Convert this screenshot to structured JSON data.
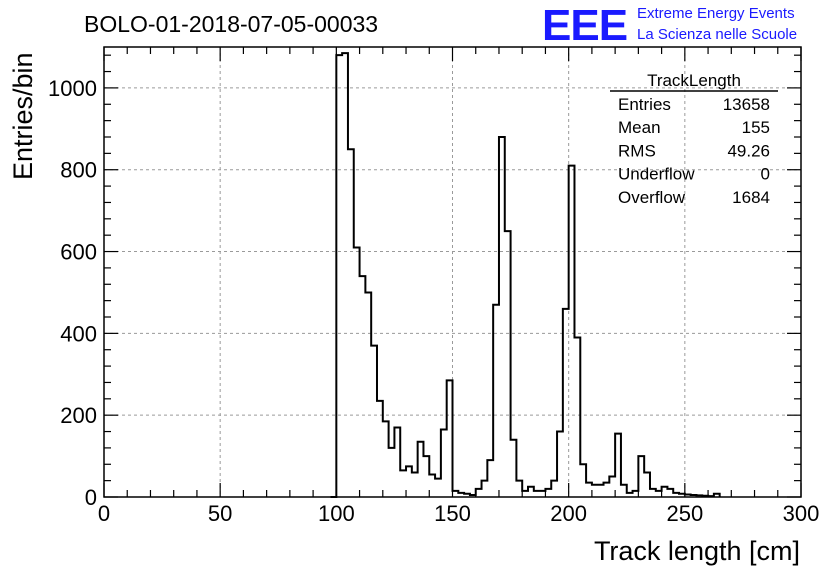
{
  "header": {
    "run_title": "BOLO-01-2018-07-05-00033",
    "logo_mark": "EEE",
    "logo_line1": "Extreme Energy Events",
    "logo_line2": "La Scienza nelle Scuole"
  },
  "stats_box": {
    "name": "TrackLength",
    "rows": [
      {
        "label": "Entries",
        "value": "13658"
      },
      {
        "label": "Mean",
        "value": "155"
      },
      {
        "label": "RMS",
        "value": "49.26"
      },
      {
        "label": "Underflow",
        "value": "0"
      },
      {
        "label": "Overflow",
        "value": "1684"
      }
    ]
  },
  "colors": {
    "line": "#000000",
    "grid": "#9a9a9a",
    "logo": "#1a1aff"
  },
  "chart_data": {
    "type": "histogram",
    "xlabel": "Track length [cm]",
    "ylabel": "Entries/bin",
    "xlim": [
      0,
      300
    ],
    "ylim": [
      0,
      1100
    ],
    "grid": true,
    "bin_width": 2.5,
    "x_ticks": [
      0,
      50,
      100,
      150,
      200,
      250,
      300
    ],
    "y_ticks": [
      0,
      200,
      400,
      600,
      800,
      1000
    ],
    "bins_start": 97.5,
    "values": [
      0,
      1080,
      1085,
      850,
      610,
      540,
      500,
      370,
      235,
      185,
      120,
      170,
      65,
      75,
      60,
      135,
      100,
      55,
      45,
      165,
      285,
      15,
      10,
      8,
      5,
      20,
      40,
      90,
      470,
      880,
      650,
      140,
      40,
      15,
      25,
      15,
      15,
      20,
      40,
      160,
      460,
      810,
      390,
      80,
      35,
      30,
      30,
      35,
      50,
      155,
      30,
      10,
      15,
      100,
      60,
      20,
      15,
      25,
      20,
      10,
      8,
      6,
      5,
      4,
      3,
      2,
      8
    ]
  }
}
